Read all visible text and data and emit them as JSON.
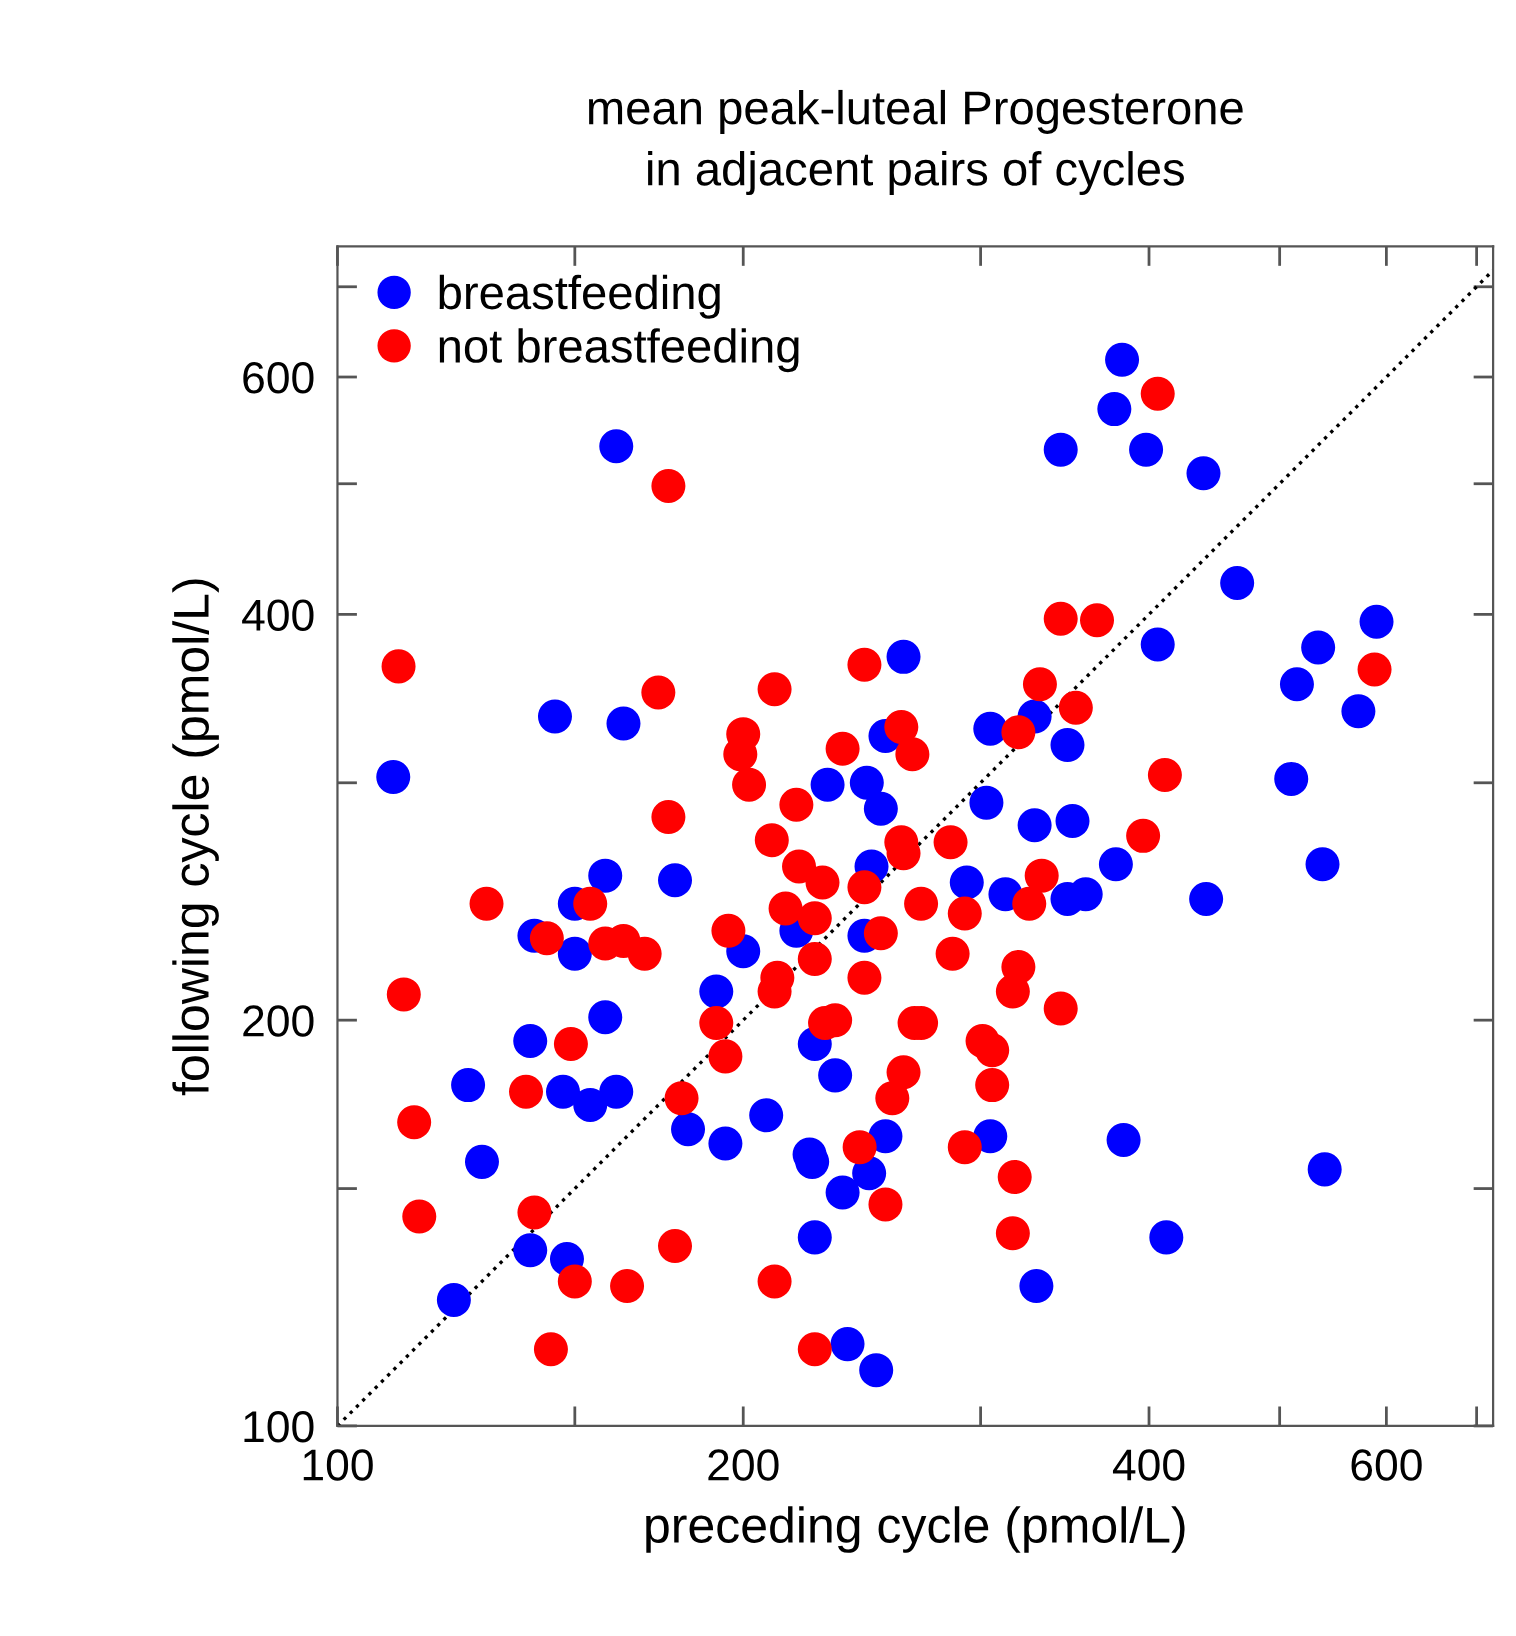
{
  "chart_data": {
    "type": "scatter",
    "title": "mean peak-luteal Progesterone\nin adjacent pairs of cycles",
    "xlabel": "preceding cycle (pmol/L)",
    "ylabel": "following cycle (pmol/L)",
    "log": "xy",
    "xlim": [
      100,
      720
    ],
    "ylim": [
      100,
      750
    ],
    "xticks": [
      100,
      {
        "value": 150,
        "label": null
      },
      200,
      {
        "value": 300,
        "label": null
      },
      400,
      {
        "value": 500,
        "label": null
      },
      600,
      {
        "value": 700,
        "label": null
      }
    ],
    "yticks": [
      100,
      {
        "value": 150,
        "label": null
      },
      200,
      {
        "value": 300,
        "label": null
      },
      400,
      {
        "value": 500,
        "label": null
      },
      600,
      {
        "value": 700,
        "label": null
      }
    ],
    "grid": false,
    "legend": "top left",
    "marker": "circle",
    "series": [
      {
        "type": "line",
        "color": "#000000",
        "line_style": "dotted",
        "marker": "none",
        "x": [
          100,
          720
        ],
        "values": [
          100,
          720
        ]
      },
      {
        "name": "breastfeeding",
        "color": "#0000ff",
        "x": [
          161,
          263,
          145,
          163,
          110,
          231,
          247,
          253,
          255,
          382,
          377,
          344,
          398,
          439,
          465,
          406,
          590,
          534,
          515,
          572,
          305,
          329,
          348,
          303,
          329,
          351,
          510,
          249,
          158,
          150,
          178,
          219,
          246,
          140,
          150,
          200,
          191,
          158,
          139,
          125,
          147,
          154,
          161,
          226,
          234,
          128,
          182,
          194,
          208,
          224,
          225,
          255,
          248,
          237,
          139,
          148,
          122,
          226,
          239,
          251,
          378,
          293,
          313,
          348,
          359,
          441,
          538,
          305,
          383,
          540,
          412,
          330
        ],
        "values": [
          533,
          372,
          336,
          332,
          303,
          299,
          300,
          287,
          325,
          618,
          568,
          530,
          530,
          509,
          422,
          380,
          395,
          378,
          355,
          339,
          329,
          336,
          320,
          290,
          279,
          281,
          302,
          260,
          256,
          244,
          254,
          233,
          231,
          231,
          224,
          225,
          210,
          201,
          193,
          179,
          177,
          173,
          177,
          192,
          182,
          157,
          166,
          162,
          170,
          159,
          157,
          164,
          154,
          149,
          135,
          133,
          124,
          138,
          115,
          110,
          261,
          253,
          248,
          246,
          248,
          246,
          261,
          164,
          163,
          155,
          138,
          127
        ]
      },
      {
        "name": "not breastfeeding",
        "color": "#ff0000",
        "x": [
          176,
          111,
          173,
          211,
          246,
          200,
          199,
          202,
          237,
          219,
          176,
          262,
          267,
          406,
          344,
          366,
          332,
          353,
          320,
          588,
          411,
          396,
          285,
          262,
          210,
          220,
          229,
          246,
          263,
          154,
          129,
          215,
          226,
          143,
          253,
          195,
          158,
          163,
          169,
          226,
          212,
          211,
          246,
          112,
          191,
          230,
          234,
          268,
          149,
          194,
          138,
          180,
          263,
          258,
          114,
          244,
          255,
          115,
          140,
          178,
          150,
          164,
          211,
          144,
          226,
          333,
          326,
          271,
          292,
          286,
          320,
          317,
          344,
          271,
          301,
          306,
          306,
          292,
          318,
          317
        ],
        "values": [
          498,
          366,
          350,
          352,
          367,
          326,
          315,
          299,
          318,
          289,
          283,
          330,
          315,
          583,
          397,
          396,
          355,
          341,
          327,
          364,
          304,
          274,
          271,
          271,
          272,
          260,
          253,
          251,
          266,
          244,
          244,
          242,
          238,
          230,
          232,
          233,
          228,
          229,
          224,
          222,
          215,
          210,
          215,
          209,
          199,
          199,
          200,
          199,
          192,
          188,
          177,
          175,
          183,
          175,
          168,
          161,
          146,
          143,
          144,
          136,
          128,
          127,
          128,
          114,
          114,
          256,
          244,
          244,
          240,
          224,
          219,
          210,
          204,
          199,
          193,
          190,
          179,
          161,
          153,
          139
        ]
      }
    ]
  }
}
